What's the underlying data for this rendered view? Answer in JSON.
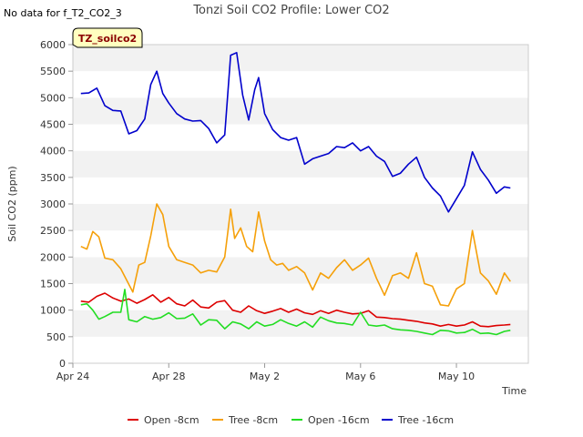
{
  "chart_data": {
    "type": "line",
    "title": "Tonzi Soil CO2 Profile: Lower CO2",
    "no_data_note": "No data for f_T2_CO2_3",
    "site_label": "TZ_soilco2",
    "xlabel": "Time",
    "ylabel": "Soil CO2 (ppm)",
    "ylim": [
      0,
      6000
    ],
    "yticks": [
      0,
      500,
      1000,
      1500,
      2000,
      2500,
      3000,
      3500,
      4000,
      4500,
      5000,
      5500,
      6000
    ],
    "xlim": [
      "2024-04-24",
      "2024-05-13"
    ],
    "xticks": [
      {
        "label": "Apr 24",
        "date": "2024-04-24"
      },
      {
        "label": "Apr 28",
        "date": "2024-04-28"
      },
      {
        "label": "May 2",
        "date": "2024-05-02"
      },
      {
        "label": "May 6",
        "date": "2024-05-06"
      },
      {
        "label": "May 10",
        "date": "2024-05-10"
      }
    ],
    "grid": "horizontal alternating bands",
    "legend_position": "bottom",
    "series": [
      {
        "name": "Open -8cm",
        "color": "#dd0000",
        "points": [
          [
            "2024-04-24 08:00",
            1170
          ],
          [
            "2024-04-24 16:00",
            1150
          ],
          [
            "2024-04-25 00:00",
            1260
          ],
          [
            "2024-04-25 08:00",
            1320
          ],
          [
            "2024-04-25 16:00",
            1230
          ],
          [
            "2024-04-26 00:00",
            1170
          ],
          [
            "2024-04-26 08:00",
            1210
          ],
          [
            "2024-04-26 16:00",
            1130
          ],
          [
            "2024-04-27 00:00",
            1200
          ],
          [
            "2024-04-27 08:00",
            1290
          ],
          [
            "2024-04-27 16:00",
            1150
          ],
          [
            "2024-04-28 00:00",
            1240
          ],
          [
            "2024-04-28 08:00",
            1120
          ],
          [
            "2024-04-28 16:00",
            1080
          ],
          [
            "2024-04-29 00:00",
            1190
          ],
          [
            "2024-04-29 08:00",
            1060
          ],
          [
            "2024-04-29 16:00",
            1040
          ],
          [
            "2024-04-30 00:00",
            1150
          ],
          [
            "2024-04-30 08:00",
            1180
          ],
          [
            "2024-04-30 16:00",
            1000
          ],
          [
            "2024-05-01 00:00",
            960
          ],
          [
            "2024-05-01 08:00",
            1080
          ],
          [
            "2024-05-01 16:00",
            990
          ],
          [
            "2024-05-02 00:00",
            940
          ],
          [
            "2024-05-02 08:00",
            980
          ],
          [
            "2024-05-02 16:00",
            1030
          ],
          [
            "2024-05-03 00:00",
            960
          ],
          [
            "2024-05-03 08:00",
            1020
          ],
          [
            "2024-05-03 16:00",
            950
          ],
          [
            "2024-05-04 00:00",
            920
          ],
          [
            "2024-05-04 08:00",
            990
          ],
          [
            "2024-05-04 16:00",
            940
          ],
          [
            "2024-05-05 00:00",
            1000
          ],
          [
            "2024-05-05 08:00",
            960
          ],
          [
            "2024-05-05 16:00",
            930
          ],
          [
            "2024-05-06 00:00",
            940
          ],
          [
            "2024-05-06 08:00",
            990
          ],
          [
            "2024-05-06 16:00",
            870
          ],
          [
            "2024-05-07 00:00",
            860
          ],
          [
            "2024-05-07 08:00",
            840
          ],
          [
            "2024-05-07 16:00",
            830
          ],
          [
            "2024-05-08 00:00",
            810
          ],
          [
            "2024-05-08 08:00",
            790
          ],
          [
            "2024-05-08 16:00",
            760
          ],
          [
            "2024-05-09 00:00",
            740
          ],
          [
            "2024-05-09 08:00",
            700
          ],
          [
            "2024-05-09 16:00",
            730
          ],
          [
            "2024-05-10 00:00",
            700
          ],
          [
            "2024-05-10 08:00",
            720
          ],
          [
            "2024-05-10 16:00",
            780
          ],
          [
            "2024-05-11 00:00",
            700
          ],
          [
            "2024-05-11 08:00",
            690
          ],
          [
            "2024-05-11 16:00",
            710
          ],
          [
            "2024-05-12 00:00",
            720
          ],
          [
            "2024-05-12 06:00",
            730
          ]
        ]
      },
      {
        "name": "Tree -8cm",
        "color": "#f5a00a",
        "points": [
          [
            "2024-04-24 08:00",
            2200
          ],
          [
            "2024-04-24 14:00",
            2150
          ],
          [
            "2024-04-24 20:00",
            2480
          ],
          [
            "2024-04-25 02:00",
            2380
          ],
          [
            "2024-04-25 08:00",
            1980
          ],
          [
            "2024-04-25 16:00",
            1950
          ],
          [
            "2024-04-26 00:00",
            1780
          ],
          [
            "2024-04-26 06:00",
            1560
          ],
          [
            "2024-04-26 12:00",
            1340
          ],
          [
            "2024-04-26 18:00",
            1850
          ],
          [
            "2024-04-27 00:00",
            1900
          ],
          [
            "2024-04-27 06:00",
            2400
          ],
          [
            "2024-04-27 12:00",
            3000
          ],
          [
            "2024-04-27 18:00",
            2800
          ],
          [
            "2024-04-28 00:00",
            2200
          ],
          [
            "2024-04-28 08:00",
            1950
          ],
          [
            "2024-04-28 16:00",
            1900
          ],
          [
            "2024-04-29 00:00",
            1850
          ],
          [
            "2024-04-29 08:00",
            1700
          ],
          [
            "2024-04-29 16:00",
            1750
          ],
          [
            "2024-04-30 00:00",
            1720
          ],
          [
            "2024-04-30 08:00",
            2000
          ],
          [
            "2024-04-30 14:00",
            2900
          ],
          [
            "2024-04-30 18:00",
            2350
          ],
          [
            "2024-05-01 00:00",
            2550
          ],
          [
            "2024-05-01 06:00",
            2200
          ],
          [
            "2024-05-01 12:00",
            2100
          ],
          [
            "2024-05-01 18:00",
            2850
          ],
          [
            "2024-05-02 00:00",
            2300
          ],
          [
            "2024-05-02 06:00",
            1950
          ],
          [
            "2024-05-02 12:00",
            1850
          ],
          [
            "2024-05-02 18:00",
            1880
          ],
          [
            "2024-05-03 00:00",
            1750
          ],
          [
            "2024-05-03 08:00",
            1820
          ],
          [
            "2024-05-03 16:00",
            1700
          ],
          [
            "2024-05-04 00:00",
            1380
          ],
          [
            "2024-05-04 08:00",
            1700
          ],
          [
            "2024-05-04 16:00",
            1600
          ],
          [
            "2024-05-05 00:00",
            1800
          ],
          [
            "2024-05-05 08:00",
            1950
          ],
          [
            "2024-05-05 16:00",
            1750
          ],
          [
            "2024-05-06 00:00",
            1850
          ],
          [
            "2024-05-06 08:00",
            1980
          ],
          [
            "2024-05-06 16:00",
            1600
          ],
          [
            "2024-05-07 00:00",
            1280
          ],
          [
            "2024-05-07 08:00",
            1650
          ],
          [
            "2024-05-07 16:00",
            1700
          ],
          [
            "2024-05-08 00:00",
            1600
          ],
          [
            "2024-05-08 08:00",
            2080
          ],
          [
            "2024-05-08 16:00",
            1500
          ],
          [
            "2024-05-09 00:00",
            1450
          ],
          [
            "2024-05-09 08:00",
            1100
          ],
          [
            "2024-05-09 16:00",
            1080
          ],
          [
            "2024-05-10 00:00",
            1400
          ],
          [
            "2024-05-10 08:00",
            1500
          ],
          [
            "2024-05-10 16:00",
            2500
          ],
          [
            "2024-05-11 00:00",
            1700
          ],
          [
            "2024-05-11 08:00",
            1550
          ],
          [
            "2024-05-11 16:00",
            1300
          ],
          [
            "2024-05-12 00:00",
            1700
          ],
          [
            "2024-05-12 06:00",
            1540
          ]
        ]
      },
      {
        "name": "Open -16cm",
        "color": "#22dd22",
        "points": [
          [
            "2024-04-24 08:00",
            1100
          ],
          [
            "2024-04-24 14:00",
            1120
          ],
          [
            "2024-04-24 20:00",
            1000
          ],
          [
            "2024-04-25 02:00",
            830
          ],
          [
            "2024-04-25 08:00",
            880
          ],
          [
            "2024-04-25 16:00",
            960
          ],
          [
            "2024-04-26 00:00",
            960
          ],
          [
            "2024-04-26 04:00",
            1390
          ],
          [
            "2024-04-26 08:00",
            820
          ],
          [
            "2024-04-26 16:00",
            780
          ],
          [
            "2024-04-27 00:00",
            880
          ],
          [
            "2024-04-27 08:00",
            830
          ],
          [
            "2024-04-27 16:00",
            860
          ],
          [
            "2024-04-28 00:00",
            950
          ],
          [
            "2024-04-28 08:00",
            840
          ],
          [
            "2024-04-28 16:00",
            850
          ],
          [
            "2024-04-29 00:00",
            930
          ],
          [
            "2024-04-29 08:00",
            720
          ],
          [
            "2024-04-29 16:00",
            820
          ],
          [
            "2024-04-30 00:00",
            810
          ],
          [
            "2024-04-30 08:00",
            650
          ],
          [
            "2024-04-30 16:00",
            780
          ],
          [
            "2024-05-01 00:00",
            740
          ],
          [
            "2024-05-01 08:00",
            650
          ],
          [
            "2024-05-01 16:00",
            780
          ],
          [
            "2024-05-02 00:00",
            700
          ],
          [
            "2024-05-02 08:00",
            730
          ],
          [
            "2024-05-02 16:00",
            820
          ],
          [
            "2024-05-03 00:00",
            750
          ],
          [
            "2024-05-03 08:00",
            700
          ],
          [
            "2024-05-03 16:00",
            780
          ],
          [
            "2024-05-04 00:00",
            680
          ],
          [
            "2024-05-04 08:00",
            870
          ],
          [
            "2024-05-04 16:00",
            800
          ],
          [
            "2024-05-05 00:00",
            760
          ],
          [
            "2024-05-05 08:00",
            750
          ],
          [
            "2024-05-05 16:00",
            720
          ],
          [
            "2024-05-06 00:00",
            960
          ],
          [
            "2024-05-06 08:00",
            720
          ],
          [
            "2024-05-06 16:00",
            700
          ],
          [
            "2024-05-07 00:00",
            720
          ],
          [
            "2024-05-07 08:00",
            650
          ],
          [
            "2024-05-07 16:00",
            630
          ],
          [
            "2024-05-08 00:00",
            620
          ],
          [
            "2024-05-08 08:00",
            600
          ],
          [
            "2024-05-08 16:00",
            570
          ],
          [
            "2024-05-09 00:00",
            540
          ],
          [
            "2024-05-09 08:00",
            620
          ],
          [
            "2024-05-09 16:00",
            610
          ],
          [
            "2024-05-10 00:00",
            570
          ],
          [
            "2024-05-10 08:00",
            580
          ],
          [
            "2024-05-10 16:00",
            640
          ],
          [
            "2024-05-11 00:00",
            560
          ],
          [
            "2024-05-11 08:00",
            570
          ],
          [
            "2024-05-11 16:00",
            540
          ],
          [
            "2024-05-12 00:00",
            600
          ],
          [
            "2024-05-12 06:00",
            620
          ]
        ]
      },
      {
        "name": "Tree -16cm",
        "color": "#0000cc",
        "points": [
          [
            "2024-04-24 08:00",
            5080
          ],
          [
            "2024-04-24 16:00",
            5090
          ],
          [
            "2024-04-25 00:00",
            5180
          ],
          [
            "2024-04-25 08:00",
            4850
          ],
          [
            "2024-04-25 16:00",
            4760
          ],
          [
            "2024-04-26 00:00",
            4750
          ],
          [
            "2024-04-26 08:00",
            4320
          ],
          [
            "2024-04-26 16:00",
            4380
          ],
          [
            "2024-04-27 00:00",
            4600
          ],
          [
            "2024-04-27 06:00",
            5250
          ],
          [
            "2024-04-27 12:00",
            5500
          ],
          [
            "2024-04-27 18:00",
            5080
          ],
          [
            "2024-04-28 00:00",
            4900
          ],
          [
            "2024-04-28 08:00",
            4700
          ],
          [
            "2024-04-28 16:00",
            4600
          ],
          [
            "2024-04-29 00:00",
            4560
          ],
          [
            "2024-04-29 08:00",
            4570
          ],
          [
            "2024-04-29 16:00",
            4420
          ],
          [
            "2024-04-30 00:00",
            4150
          ],
          [
            "2024-04-30 08:00",
            4300
          ],
          [
            "2024-04-30 14:00",
            5800
          ],
          [
            "2024-04-30 20:00",
            5850
          ],
          [
            "2024-05-01 02:00",
            5050
          ],
          [
            "2024-05-01 08:00",
            4580
          ],
          [
            "2024-05-01 14:00",
            5150
          ],
          [
            "2024-05-01 18:00",
            5380
          ],
          [
            "2024-05-02 00:00",
            4700
          ],
          [
            "2024-05-02 08:00",
            4400
          ],
          [
            "2024-05-02 16:00",
            4250
          ],
          [
            "2024-05-03 00:00",
            4200
          ],
          [
            "2024-05-03 08:00",
            4250
          ],
          [
            "2024-05-03 16:00",
            3750
          ],
          [
            "2024-05-04 00:00",
            3850
          ],
          [
            "2024-05-04 08:00",
            3900
          ],
          [
            "2024-05-04 16:00",
            3950
          ],
          [
            "2024-05-05 00:00",
            4080
          ],
          [
            "2024-05-05 08:00",
            4060
          ],
          [
            "2024-05-05 16:00",
            4150
          ],
          [
            "2024-05-06 00:00",
            4000
          ],
          [
            "2024-05-06 08:00",
            4080
          ],
          [
            "2024-05-06 16:00",
            3900
          ],
          [
            "2024-05-07 00:00",
            3800
          ],
          [
            "2024-05-07 08:00",
            3520
          ],
          [
            "2024-05-07 16:00",
            3580
          ],
          [
            "2024-05-08 00:00",
            3750
          ],
          [
            "2024-05-08 08:00",
            3880
          ],
          [
            "2024-05-08 16:00",
            3500
          ],
          [
            "2024-05-09 00:00",
            3300
          ],
          [
            "2024-05-09 08:00",
            3150
          ],
          [
            "2024-05-09 16:00",
            2850
          ],
          [
            "2024-05-10 00:00",
            3100
          ],
          [
            "2024-05-10 08:00",
            3350
          ],
          [
            "2024-05-10 16:00",
            3980
          ],
          [
            "2024-05-11 00:00",
            3650
          ],
          [
            "2024-05-11 08:00",
            3450
          ],
          [
            "2024-05-11 16:00",
            3200
          ],
          [
            "2024-05-12 00:00",
            3320
          ],
          [
            "2024-05-12 06:00",
            3300
          ]
        ]
      }
    ]
  }
}
